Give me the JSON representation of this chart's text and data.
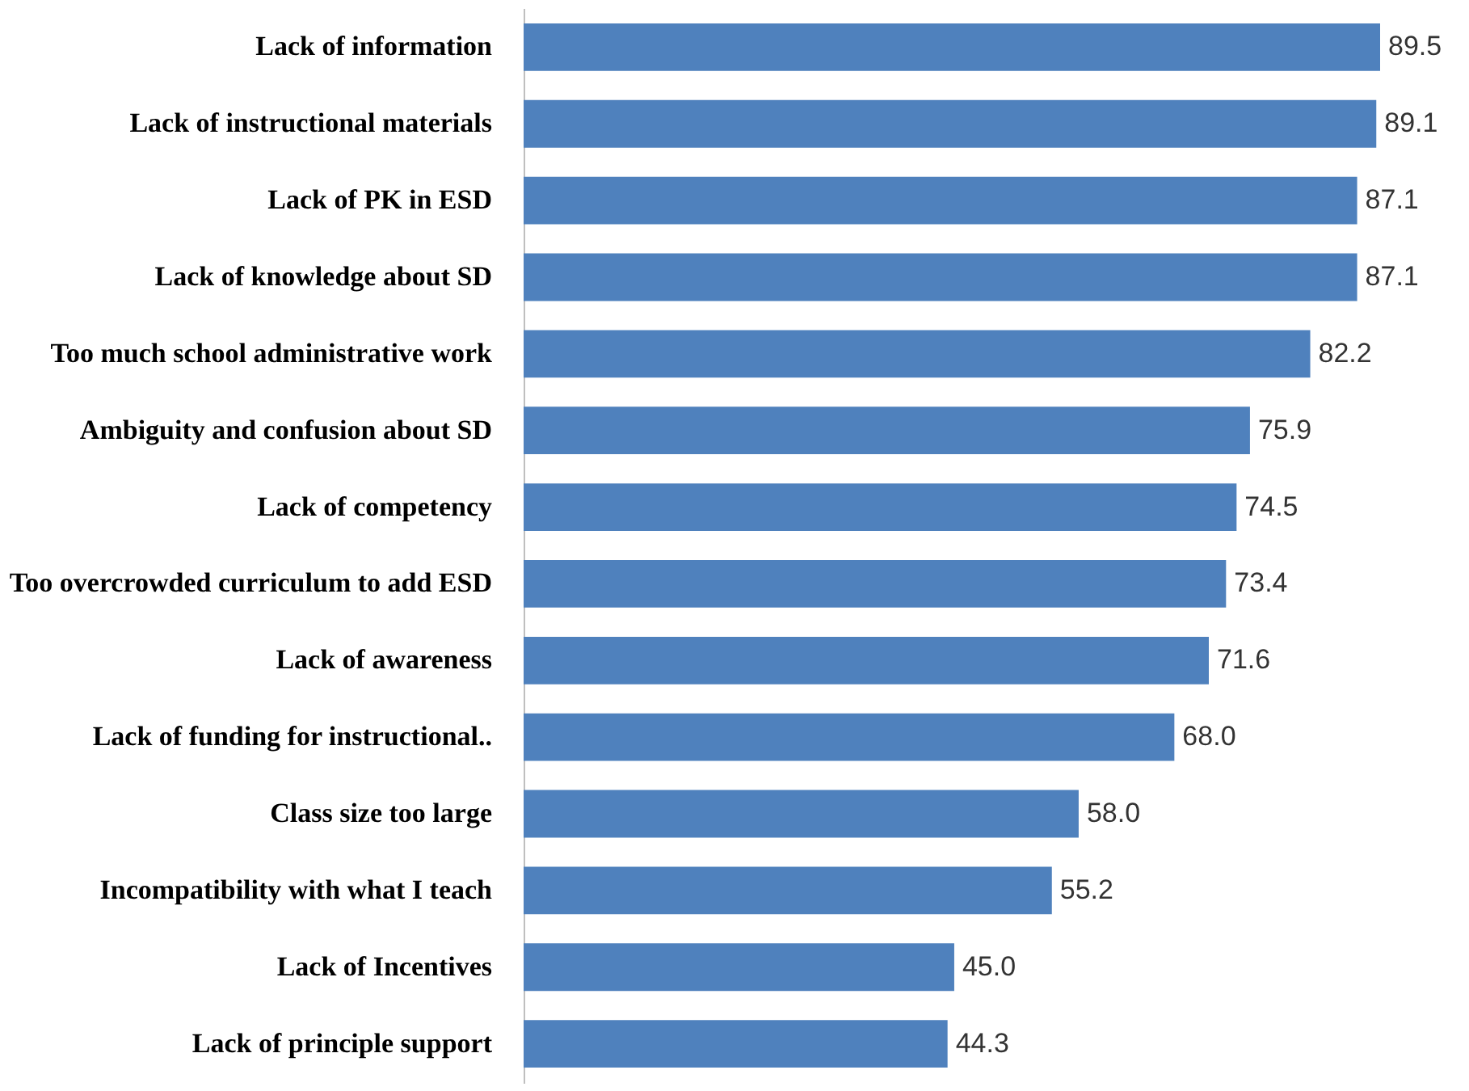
{
  "chart_data": {
    "type": "bar",
    "orientation": "horizontal",
    "categories": [
      "Lack of information",
      "Lack of instructional materials",
      "Lack of PK in ESD",
      "Lack of knowledge about SD",
      "Too much school administrative work",
      "Ambiguity and confusion about SD",
      "Lack of competency",
      "Too overcrowded curriculum to add ESD",
      "Lack of awareness",
      "Lack of funding for instructional..",
      "Class size too large",
      "Incompatibility with what I teach",
      "Lack of Incentives",
      "Lack of principle support"
    ],
    "values": [
      89.5,
      89.1,
      87.1,
      87.1,
      82.2,
      75.9,
      74.5,
      73.4,
      71.6,
      68.0,
      58.0,
      55.2,
      45.0,
      44.3
    ],
    "value_labels": [
      "89.5",
      "89.1",
      "87.1",
      "87.1",
      "82.2",
      "75.9",
      "74.5",
      "73.4",
      "71.6",
      "68.0",
      "58.0",
      "55.2",
      "45.0",
      "44.3"
    ],
    "color": "#4f81bd",
    "legend": false,
    "tick_labels": "y"
  }
}
